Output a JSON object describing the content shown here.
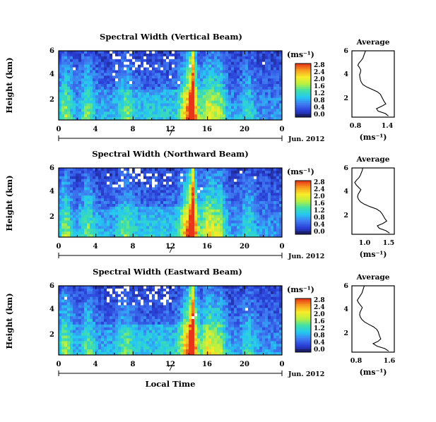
{
  "figure": {
    "footer_label": "Local Time"
  },
  "colormap": {
    "stops": [
      "#1a1f6e",
      "#2a3fd8",
      "#3f7cf2",
      "#25c8f2",
      "#3fe0a8",
      "#b8f040",
      "#f8ec28",
      "#f8a020",
      "#e83418"
    ],
    "background": "#ffffff"
  },
  "chart_data": [
    {
      "type": "heatmap",
      "title": "Spectral Width (Vertical Beam)",
      "ylabel": "Height (km)",
      "y_ticks": [
        "2",
        "4",
        "6"
      ],
      "x_ticks": [
        "0",
        "4",
        "8",
        "12",
        "16",
        "20",
        "0"
      ],
      "xlim": [
        0,
        24
      ],
      "ylim": [
        0.5,
        6
      ],
      "date_axis": {
        "day": "7",
        "month_label": "Jun. 2012"
      },
      "colorbar": {
        "unit": "(ms⁻¹)",
        "ticks": [
          "0.0",
          "0.4",
          "0.8",
          "1.2",
          "1.6",
          "2.0",
          "2.4",
          "2.8"
        ],
        "range": [
          0,
          3.0
        ]
      },
      "average": {
        "type": "line",
        "title": "Average",
        "xlabel": "(ms⁻¹)",
        "x_ticks": [
          "0.8",
          "1.4"
        ],
        "y_ticks": [
          "2",
          "4",
          "6"
        ],
        "xlim": [
          0.6,
          1.6
        ],
        "ylim": [
          0.5,
          6
        ],
        "heights": [
          0.6,
          0.8,
          1.0,
          1.2,
          1.4,
          1.6,
          1.8,
          2.0,
          2.2,
          2.4,
          2.6,
          2.8,
          3.0,
          3.2,
          3.4,
          3.6,
          3.8,
          4.0,
          4.2,
          4.4,
          4.6,
          4.8,
          5.0,
          5.2,
          5.4,
          5.6,
          5.8,
          6.0
        ],
        "values": [
          1.46,
          1.39,
          1.22,
          1.18,
          1.3,
          1.4,
          1.36,
          1.33,
          1.3,
          1.27,
          1.2,
          1.08,
          0.95,
          0.86,
          0.82,
          0.8,
          0.79,
          0.78,
          0.8,
          0.81,
          0.78,
          0.74,
          0.77,
          0.82,
          0.86,
          0.88,
          0.9,
          0.92
        ]
      }
    },
    {
      "type": "heatmap",
      "title": "Spectral Width (Northward Beam)",
      "ylabel": "Height (km)",
      "y_ticks": [
        "2",
        "4",
        "6"
      ],
      "x_ticks": [
        "0",
        "4",
        "8",
        "12",
        "16",
        "20",
        "0"
      ],
      "xlim": [
        0,
        24
      ],
      "ylim": [
        0.5,
        6
      ],
      "date_axis": {
        "day": "7",
        "month_label": "Jun. 2012"
      },
      "colorbar": {
        "unit": "(ms⁻¹)",
        "ticks": [
          "0.0",
          "0.4",
          "0.8",
          "1.2",
          "1.6",
          "2.0",
          "2.4",
          "2.8"
        ],
        "range": [
          0,
          3.0
        ]
      },
      "average": {
        "type": "line",
        "title": "Average",
        "xlabel": "(ms⁻¹)",
        "x_ticks": [
          "1.0",
          "1.5"
        ],
        "y_ticks": [
          "2",
          "4",
          "6"
        ],
        "xlim": [
          0.7,
          1.6
        ],
        "ylim": [
          0.5,
          6
        ],
        "heights": [
          0.6,
          0.8,
          1.0,
          1.2,
          1.4,
          1.6,
          1.8,
          2.0,
          2.2,
          2.4,
          2.6,
          2.8,
          3.0,
          3.2,
          3.4,
          3.6,
          3.8,
          4.0,
          4.2,
          4.4,
          4.6,
          4.8,
          5.0,
          5.2,
          5.4,
          5.6,
          5.8,
          6.0
        ],
        "values": [
          1.5,
          1.42,
          1.28,
          1.24,
          1.36,
          1.44,
          1.4,
          1.37,
          1.34,
          1.3,
          1.22,
          1.08,
          0.96,
          0.88,
          0.84,
          0.82,
          0.83,
          0.86,
          0.89,
          0.84,
          0.79,
          0.76,
          0.8,
          0.85,
          0.88,
          0.9,
          0.92,
          0.93
        ]
      }
    },
    {
      "type": "heatmap",
      "title": "Spectral Width (Eastward Beam)",
      "ylabel": "Height (km)",
      "y_ticks": [
        "2",
        "4",
        "6"
      ],
      "x_ticks": [
        "0",
        "4",
        "8",
        "12",
        "16",
        "20",
        "0"
      ],
      "xlim": [
        0,
        24
      ],
      "ylim": [
        0.5,
        6
      ],
      "date_axis": {
        "day": "7",
        "month_label": "Jun. 2012"
      },
      "colorbar": {
        "unit": "(ms⁻¹)",
        "ticks": [
          "0.0",
          "0.4",
          "0.8",
          "1.2",
          "1.6",
          "2.0",
          "2.4",
          "2.8"
        ],
        "range": [
          0,
          3.0
        ]
      },
      "average": {
        "type": "line",
        "title": "Average",
        "xlabel": "(ms⁻¹)",
        "x_ticks": [
          "0.8",
          "1.6"
        ],
        "y_ticks": [
          "2",
          "4",
          "6"
        ],
        "xlim": [
          0.6,
          1.7
        ],
        "ylim": [
          0.5,
          6
        ],
        "heights": [
          0.6,
          0.8,
          1.0,
          1.2,
          1.4,
          1.6,
          1.8,
          2.0,
          2.2,
          2.4,
          2.6,
          2.8,
          3.0,
          3.2,
          3.4,
          3.6,
          3.8,
          4.0,
          4.2,
          4.4,
          4.6,
          4.8,
          5.0,
          5.2,
          5.4,
          5.6,
          5.8,
          6.0
        ],
        "values": [
          1.55,
          1.45,
          1.25,
          1.15,
          1.28,
          1.35,
          1.32,
          1.3,
          1.28,
          1.24,
          1.16,
          1.04,
          0.93,
          0.86,
          0.82,
          0.8,
          0.81,
          0.84,
          0.87,
          0.82,
          0.77,
          0.74,
          0.78,
          0.82,
          0.86,
          0.88,
          0.9,
          0.92
        ]
      }
    }
  ]
}
